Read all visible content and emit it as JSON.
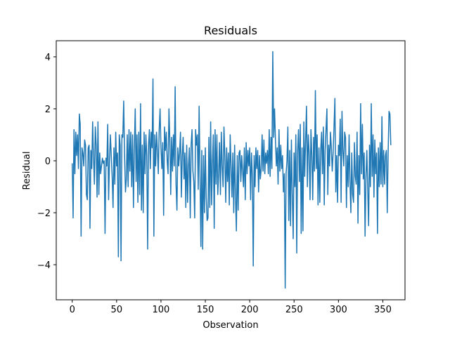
{
  "chart_data": {
    "type": "line",
    "title": "Residuals",
    "xlabel": "Observation",
    "ylabel": "Residual",
    "color": "#1f77b4",
    "x": [
      0,
      1,
      2,
      3,
      4,
      5,
      6,
      7,
      8,
      9,
      10,
      11,
      12,
      13,
      14,
      15,
      16,
      17,
      18,
      19,
      20,
      21,
      22,
      23,
      24,
      25,
      26,
      27,
      28,
      29,
      30,
      31,
      32,
      33,
      34,
      35,
      36,
      37,
      38,
      39,
      40,
      41,
      42,
      43,
      44,
      45,
      46,
      47,
      48,
      49,
      50,
      51,
      52,
      53,
      54,
      55,
      56,
      57,
      58,
      59,
      60,
      61,
      62,
      63,
      64,
      65,
      66,
      67,
      68,
      69,
      70,
      71,
      72,
      73,
      74,
      75,
      76,
      77,
      78,
      79,
      80,
      81,
      82,
      83,
      84,
      85,
      86,
      87,
      88,
      89,
      90,
      91,
      92,
      93,
      94,
      95,
      96,
      97,
      98,
      99,
      100,
      101,
      102,
      103,
      104,
      105,
      106,
      107,
      108,
      109,
      110,
      111,
      112,
      113,
      114,
      115,
      116,
      117,
      118,
      119,
      120,
      121,
      122,
      123,
      124,
      125,
      126,
      127,
      128,
      129,
      130,
      131,
      132,
      133,
      134,
      135,
      136,
      137,
      138,
      139,
      140,
      141,
      142,
      143,
      144,
      145,
      146,
      147,
      148,
      149,
      150,
      151,
      152,
      153,
      154,
      155,
      156,
      157,
      158,
      159,
      160,
      161,
      162,
      163,
      164,
      165,
      166,
      167,
      168,
      169,
      170,
      171,
      172,
      173,
      174,
      175,
      176,
      177,
      178,
      179,
      180,
      181,
      182,
      183,
      184,
      185,
      186,
      187,
      188,
      189,
      190,
      191,
      192,
      193,
      194,
      195,
      196,
      197,
      198,
      199,
      200,
      201,
      202,
      203,
      204,
      205,
      206,
      207,
      208,
      209,
      210,
      211,
      212,
      213,
      214,
      215,
      216,
      217,
      218,
      219,
      220,
      221,
      222,
      223,
      224,
      225,
      226,
      227,
      228,
      229,
      230,
      231,
      232,
      233,
      234,
      235,
      236,
      237,
      238,
      239,
      240,
      241,
      242,
      243,
      244,
      245,
      246,
      247,
      248,
      249,
      250,
      251,
      252,
      253,
      254,
      255,
      256,
      257,
      258,
      259,
      260,
      261,
      262,
      263,
      264,
      265,
      266,
      267,
      268,
      269,
      270,
      271,
      272,
      273,
      274,
      275,
      276,
      277,
      278,
      279,
      280,
      281,
      282,
      283,
      284,
      285,
      286,
      287,
      288,
      289,
      290,
      291,
      292,
      293,
      294,
      295,
      296,
      297,
      298,
      299,
      300,
      301,
      302,
      303,
      304,
      305,
      306,
      307,
      308,
      309,
      310,
      311,
      312,
      313,
      314,
      315,
      316,
      317,
      318,
      319,
      320,
      321,
      322,
      323,
      324,
      325,
      326,
      327,
      328,
      329,
      330,
      331,
      332,
      333,
      334,
      335,
      336,
      337,
      338,
      339,
      340,
      341,
      342,
      343,
      344,
      345,
      346,
      347,
      348,
      349,
      350,
      351,
      352,
      353,
      354,
      355,
      356,
      357,
      358,
      359
    ],
    "values": [
      -0.1,
      -2.2,
      1.2,
      -0.5,
      1.1,
      0.2,
      1.0,
      -0.3,
      1.8,
      1.4,
      -2.9,
      0.5,
      0.3,
      -0.2,
      0.8,
      0.6,
      -1.3,
      -1.5,
      0.5,
      0.6,
      -2.6,
      0.4,
      -0.3,
      1.5,
      0.1,
      -0.9,
      1.3,
      0.6,
      -1.4,
      1.5,
      -1.3,
      0.3,
      -0.5,
      -0.2,
      0.1,
      -0.1,
      0.0,
      -2.8,
      0.1,
      -0.2,
      1.4,
      -1.5,
      0.0,
      1.0,
      0.2,
      -0.6,
      -1.8,
      0.5,
      -0.9,
      1.1,
      -0.2,
      0.3,
      -3.7,
      1.0,
      0.6,
      -3.85,
      1.0,
      0.9,
      2.3,
      0.2,
      -1.2,
      -0.7,
      1.0,
      -1.0,
      1.2,
      -0.4,
      1.1,
      -1.0,
      1.0,
      -1.8,
      0.5,
      2.0,
      -0.8,
      1.0,
      -1.6,
      1.1,
      -1.3,
      2.2,
      -1.9,
      0.6,
      -2.0,
      1.1,
      -0.5,
      1.0,
      0.2,
      -3.4,
      0.6,
      1.2,
      -0.3,
      1.1,
      0.5,
      3.15,
      -2.9,
      1.0,
      -0.2,
      1.1,
      0.4,
      -0.5,
      1.2,
      2.0,
      0.5,
      -0.3,
      0.7,
      -2.1,
      1.3,
      0.4,
      1.1,
      0.0,
      -0.5,
      2.0,
      0.8,
      -1.3,
      0.9,
      -0.4,
      1.0,
      -0.2,
      2.85,
      -0.9,
      -1.9,
      0.5,
      -0.2,
      0.3,
      1.1,
      -1.4,
      0.2,
      0.9,
      -0.7,
      0.3,
      -1.8,
      0.6,
      -1.6,
      -0.2,
      0.5,
      -2.2,
      0.6,
      1.2,
      -0.4,
      -0.8,
      -2.2,
      1.2,
      0.6,
      1.0,
      -1.1,
      2.1,
      -0.5,
      -3.3,
      0.4,
      -3.4,
      0.2,
      -2.0,
      0.5,
      -1.4,
      -2.3,
      -2.2,
      0.9,
      -1.8,
      1.5,
      -1.7,
      -0.1,
      1.0,
      -2.6,
      1.2,
      -0.9,
      1.0,
      -1.3,
      -0.5,
      0.7,
      -1.3,
      1.1,
      -0.2,
      -1.0,
      1.3,
      0.2,
      -1.6,
      0.5,
      -0.8,
      0.3,
      -1.7,
      1.0,
      -0.2,
      -1.4,
      0.3,
      -2.0,
      0.6,
      -1.4,
      -2.7,
      0.2,
      -1.9,
      0.3,
      0.4,
      -0.8,
      0.2,
      -0.4,
      -1.0,
      0.5,
      -1.5,
      0.7,
      -0.5,
      0.4,
      -0.2,
      0.5,
      -1.5,
      0.3,
      -0.6,
      -4.05,
      0.2,
      -1.0,
      0.5,
      -0.3,
      0.4,
      -1.2,
      0.2,
      -0.7,
      -0.3,
      1.0,
      -0.4,
      0.8,
      -0.5,
      0.3,
      -0.1,
      0.4,
      -0.5,
      1.2,
      -0.6,
      0.9,
      -0.3,
      4.2,
      0.9,
      2.0,
      0.8,
      -0.2,
      0.5,
      -0.9,
      1.2,
      -0.4,
      0.6,
      -0.3,
      0.2,
      -1.2,
      -0.5,
      -4.9,
      -0.5,
      0.0,
      1.3,
      -2.3,
      0.4,
      -2.5,
      0.8,
      -1.3,
      -3.0,
      0.3,
      -1.0,
      1.0,
      -3.55,
      0.4,
      1.2,
      -0.8,
      1.4,
      -2.8,
      0.5,
      -2.7,
      1.5,
      -0.6,
      0.8,
      2.1,
      -1.0,
      1.0,
      0.3,
      -1.5,
      1.2,
      0.2,
      -1.5,
      0.9,
      -0.4,
      2.7,
      -0.3,
      1.0,
      -1.7,
      0.5,
      -1.6,
      0.4,
      1.1,
      -0.5,
      1.3,
      -1.7,
      0.4,
      1.2,
      2.0,
      -1.3,
      0.6,
      -0.2,
      1.1,
      0.5,
      -0.4,
      0.3,
      1.3,
      2.4,
      -1.2,
      0.2,
      -1.6,
      0.6,
      0.2,
      1.6,
      -1.6,
      1.9,
      0.4,
      -0.2,
      1.1,
      0.9,
      -1.8,
      0.2,
      -1.0,
      1.0,
      -0.8,
      -2.0,
      0.3,
      -1.3,
      -1.6,
      0.7,
      -0.6,
      -0.9,
      1.1,
      -2.4,
      0.2,
      -1.3,
      2.2,
      -0.5,
      1.4,
      -0.7,
      0.3,
      -2.9,
      -0.6,
      0.4,
      -1.1,
      -2.5,
      0.6,
      -1.0,
      2.2,
      -0.6,
      1.0,
      -1.4,
      0.8,
      -0.5,
      0.3,
      -2.8,
      0.5,
      -1.0,
      0.7,
      -0.9,
      1.7,
      -1.0,
      0.4,
      -0.9,
      0.2,
      0.4,
      -2.0,
      0.3,
      1.9,
      1.8,
      0.6
    ],
    "xlim": [
      -18,
      375
    ],
    "ylim": [
      -5.35,
      4.62
    ],
    "xticks": [
      0,
      50,
      100,
      150,
      200,
      250,
      300,
      350
    ],
    "yticks": [
      {
        "value": -4,
        "label": "−4"
      },
      {
        "value": -2,
        "label": "−2"
      },
      0,
      2,
      4
    ]
  }
}
